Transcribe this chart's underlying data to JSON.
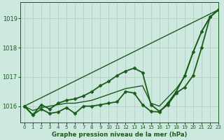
{
  "bg_color": "#cce8df",
  "line_color": "#1a5c1a",
  "grid_color": "#b0c8c0",
  "title": "Graphe pression niveau de la mer (hPa)",
  "xlim": [
    -0.5,
    23
  ],
  "ylim": [
    1015.45,
    1019.55
  ],
  "yticks": [
    1016,
    1017,
    1018,
    1019
  ],
  "xticks": [
    0,
    1,
    2,
    3,
    4,
    5,
    6,
    7,
    8,
    9,
    10,
    11,
    12,
    13,
    14,
    15,
    16,
    17,
    18,
    19,
    20,
    21,
    22,
    23
  ],
  "series": [
    {
      "x": [
        0,
        1,
        2,
        3,
        4,
        5,
        6,
        7,
        8,
        9,
        10,
        11,
        12,
        13,
        14,
        15,
        16,
        17,
        18,
        19,
        20,
        21,
        22,
        23
      ],
      "y": [
        1016.0,
        1015.7,
        1015.9,
        1015.75,
        1015.8,
        1015.95,
        1015.75,
        1016.0,
        1016.0,
        1016.05,
        1016.1,
        1016.15,
        1016.5,
        1016.45,
        1016.05,
        1015.82,
        1015.8,
        1016.1,
        1016.5,
        1017.05,
        1017.85,
        1018.55,
        1019.05,
        1019.3
      ],
      "marker": "D",
      "markersize": 2.5,
      "linewidth": 1.3
    },
    {
      "x": [
        0,
        1,
        2,
        3,
        4,
        5,
        6,
        7,
        8,
        9,
        10,
        11,
        12,
        13,
        14,
        15,
        16,
        17,
        18,
        19,
        20,
        21,
        22,
        23
      ],
      "y": [
        1016.0,
        1015.85,
        1015.95,
        1016.0,
        1016.05,
        1016.1,
        1016.1,
        1016.15,
        1016.2,
        1016.3,
        1016.4,
        1016.5,
        1016.6,
        1016.65,
        1016.7,
        1016.1,
        1016.0,
        1016.3,
        1016.6,
        1017.0,
        1017.85,
        1018.55,
        1019.05,
        1019.3
      ],
      "marker": null,
      "markersize": 0,
      "linewidth": 1.0
    },
    {
      "x": [
        0,
        1,
        2,
        3,
        4,
        5,
        6,
        7,
        8,
        9,
        10,
        11,
        12,
        13,
        14,
        15,
        16,
        17,
        18,
        19,
        20,
        21,
        22,
        23
      ],
      "y": [
        1016.0,
        1015.7,
        1016.05,
        1015.9,
        1016.1,
        1016.2,
        1016.25,
        1016.35,
        1016.5,
        1016.7,
        1016.85,
        1017.05,
        1017.2,
        1017.3,
        1017.15,
        1016.05,
        1015.82,
        1016.05,
        1016.45,
        1016.65,
        1017.05,
        1018.0,
        1019.05,
        1019.3
      ],
      "marker": "D",
      "markersize": 2.5,
      "linewidth": 1.3
    },
    {
      "x": [
        0,
        23
      ],
      "y": [
        1016.0,
        1019.3
      ],
      "marker": null,
      "markersize": 0,
      "linewidth": 1.0
    }
  ]
}
